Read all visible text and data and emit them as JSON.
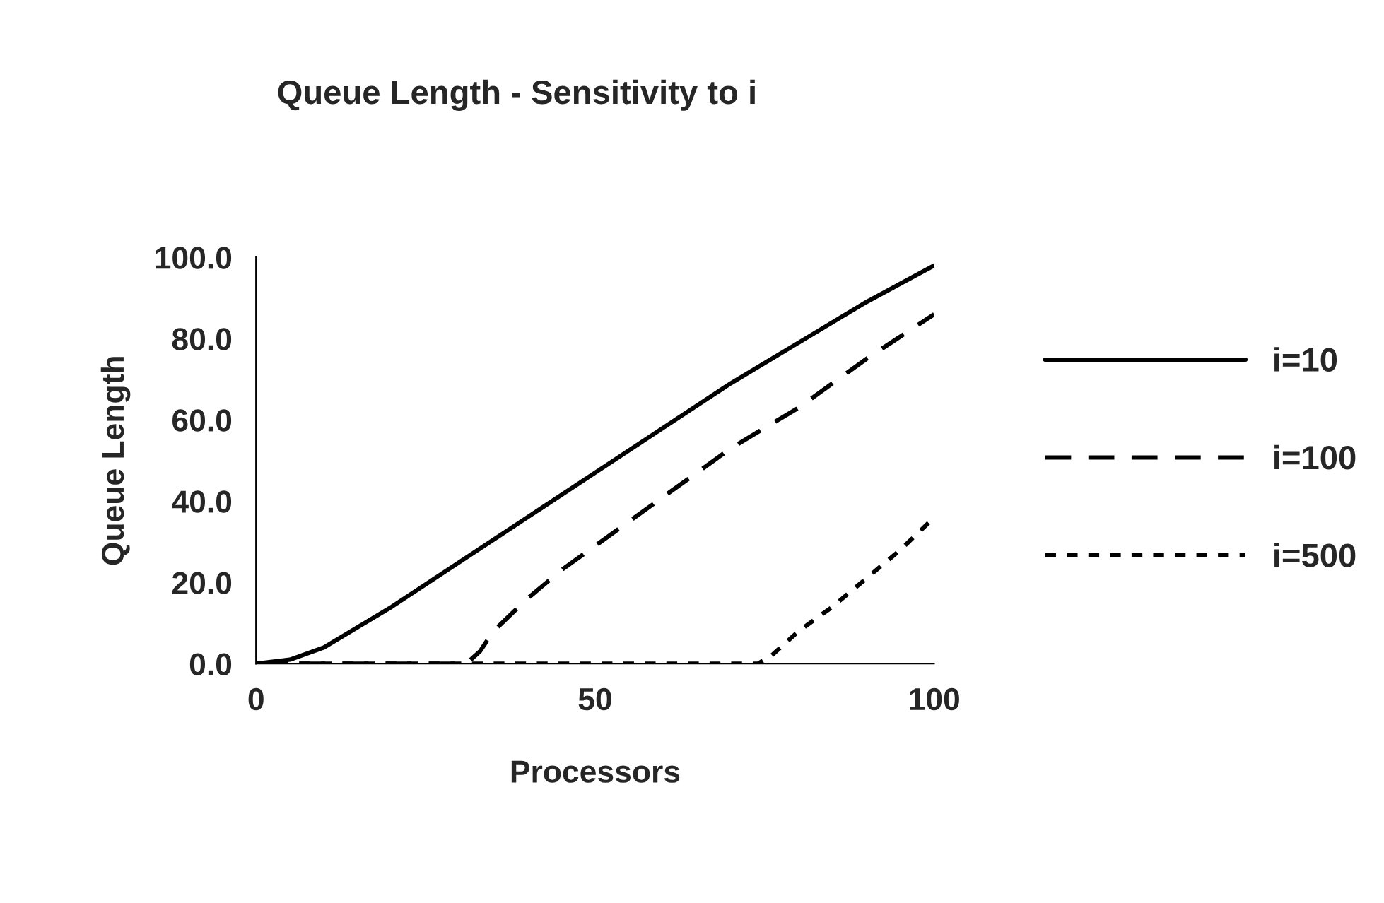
{
  "chart_data": {
    "type": "line",
    "title": "Queue Length - Sensitivity to i",
    "xlabel": "Processors",
    "ylabel": "Queue Length",
    "xlim": [
      0,
      100
    ],
    "xticks": [
      0,
      50,
      100
    ],
    "ylim": [
      0,
      100
    ],
    "yticks": [
      {
        "value": 0,
        "label": "0.0"
      },
      {
        "value": 20,
        "label": "20.0"
      },
      {
        "value": 40,
        "label": "40.0"
      },
      {
        "value": 60,
        "label": "60.0"
      },
      {
        "value": 80,
        "label": "80.0"
      },
      {
        "value": 100,
        "label": "100.0"
      }
    ],
    "grid": false,
    "legend": "right",
    "marker": "none",
    "series": [
      {
        "name": "i=10",
        "color": "#000000",
        "line_style": "solid",
        "x": [
          0,
          5,
          10,
          15,
          20,
          30,
          40,
          50,
          60,
          70,
          80,
          90,
          100
        ],
        "values": [
          0,
          1,
          4,
          9,
          14,
          25,
          36,
          47,
          58,
          69,
          79,
          89,
          98
        ]
      },
      {
        "name": "i=100",
        "color": "#000000",
        "line_style": "dashed",
        "x": [
          0,
          31,
          33,
          35,
          40,
          45,
          50,
          60,
          70,
          80,
          90,
          100
        ],
        "values": [
          0,
          0,
          3,
          8,
          16,
          23,
          29,
          41,
          53,
          63,
          75,
          86
        ]
      },
      {
        "name": "i=500",
        "color": "#000000",
        "line_style": "dotted",
        "x": [
          0,
          74,
          76,
          80,
          85,
          90,
          95,
          100
        ],
        "values": [
          0,
          0,
          2,
          8,
          14,
          21,
          28,
          36
        ]
      }
    ]
  }
}
